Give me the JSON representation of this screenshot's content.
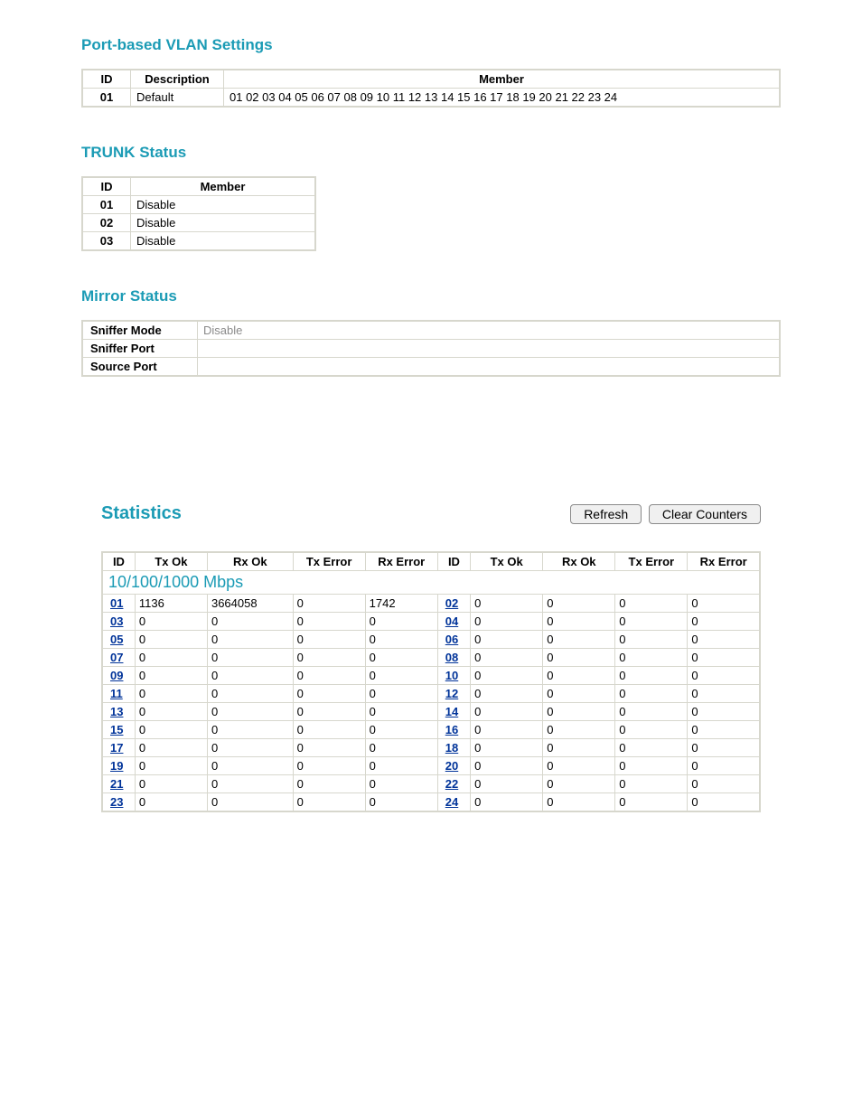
{
  "vlan": {
    "title": "Port-based VLAN Settings",
    "headers": {
      "id": "ID",
      "description": "Description",
      "member": "Member"
    },
    "rows": [
      {
        "id": "01",
        "description": "Default",
        "member": "01 02 03 04 05 06 07 08 09 10 11 12 13 14 15 16 17 18 19 20 21 22 23 24"
      }
    ]
  },
  "trunk": {
    "title": "TRUNK Status",
    "headers": {
      "id": "ID",
      "member": "Member"
    },
    "rows": [
      {
        "id": "01",
        "member": "Disable"
      },
      {
        "id": "02",
        "member": "Disable"
      },
      {
        "id": "03",
        "member": "Disable"
      }
    ]
  },
  "mirror": {
    "title": "Mirror Status",
    "rows": [
      {
        "label": "Sniffer Mode",
        "value": "Disable"
      },
      {
        "label": "Sniffer Port",
        "value": ""
      },
      {
        "label": "Source Port",
        "value": ""
      }
    ]
  },
  "statistics": {
    "title": "Statistics",
    "buttons": {
      "refresh": "Refresh",
      "clear": "Clear Counters"
    },
    "headers": {
      "id": "ID",
      "txok": "Tx Ok",
      "rxok": "Rx Ok",
      "txerr": "Tx Error",
      "rxerr": "Rx Error"
    },
    "speed_label": "10/100/1000 Mbps",
    "rows": [
      {
        "left": {
          "id": "01",
          "txok": "1136",
          "rxok": "3664058",
          "txerr": "0",
          "rxerr": "1742"
        },
        "right": {
          "id": "02",
          "txok": "0",
          "rxok": "0",
          "txerr": "0",
          "rxerr": "0"
        }
      },
      {
        "left": {
          "id": "03",
          "txok": "0",
          "rxok": "0",
          "txerr": "0",
          "rxerr": "0"
        },
        "right": {
          "id": "04",
          "txok": "0",
          "rxok": "0",
          "txerr": "0",
          "rxerr": "0"
        }
      },
      {
        "left": {
          "id": "05",
          "txok": "0",
          "rxok": "0",
          "txerr": "0",
          "rxerr": "0"
        },
        "right": {
          "id": "06",
          "txok": "0",
          "rxok": "0",
          "txerr": "0",
          "rxerr": "0"
        }
      },
      {
        "left": {
          "id": "07",
          "txok": "0",
          "rxok": "0",
          "txerr": "0",
          "rxerr": "0"
        },
        "right": {
          "id": "08",
          "txok": "0",
          "rxok": "0",
          "txerr": "0",
          "rxerr": "0"
        }
      },
      {
        "left": {
          "id": "09",
          "txok": "0",
          "rxok": "0",
          "txerr": "0",
          "rxerr": "0"
        },
        "right": {
          "id": "10",
          "txok": "0",
          "rxok": "0",
          "txerr": "0",
          "rxerr": "0"
        }
      },
      {
        "left": {
          "id": "11",
          "txok": "0",
          "rxok": "0",
          "txerr": "0",
          "rxerr": "0"
        },
        "right": {
          "id": "12",
          "txok": "0",
          "rxok": "0",
          "txerr": "0",
          "rxerr": "0"
        }
      },
      {
        "left": {
          "id": "13",
          "txok": "0",
          "rxok": "0",
          "txerr": "0",
          "rxerr": "0"
        },
        "right": {
          "id": "14",
          "txok": "0",
          "rxok": "0",
          "txerr": "0",
          "rxerr": "0"
        }
      },
      {
        "left": {
          "id": "15",
          "txok": "0",
          "rxok": "0",
          "txerr": "0",
          "rxerr": "0"
        },
        "right": {
          "id": "16",
          "txok": "0",
          "rxok": "0",
          "txerr": "0",
          "rxerr": "0"
        }
      },
      {
        "left": {
          "id": "17",
          "txok": "0",
          "rxok": "0",
          "txerr": "0",
          "rxerr": "0"
        },
        "right": {
          "id": "18",
          "txok": "0",
          "rxok": "0",
          "txerr": "0",
          "rxerr": "0"
        }
      },
      {
        "left": {
          "id": "19",
          "txok": "0",
          "rxok": "0",
          "txerr": "0",
          "rxerr": "0"
        },
        "right": {
          "id": "20",
          "txok": "0",
          "rxok": "0",
          "txerr": "0",
          "rxerr": "0"
        }
      },
      {
        "left": {
          "id": "21",
          "txok": "0",
          "rxok": "0",
          "txerr": "0",
          "rxerr": "0"
        },
        "right": {
          "id": "22",
          "txok": "0",
          "rxok": "0",
          "txerr": "0",
          "rxerr": "0"
        }
      },
      {
        "left": {
          "id": "23",
          "txok": "0",
          "rxok": "0",
          "txerr": "0",
          "rxerr": "0"
        },
        "right": {
          "id": "24",
          "txok": "0",
          "rxok": "0",
          "txerr": "0",
          "rxerr": "0"
        }
      }
    ]
  },
  "colors": {
    "accent": "#1b9bb5",
    "border": "#d7d7cd",
    "link": "#003399",
    "muted": "#8a8a8a"
  }
}
